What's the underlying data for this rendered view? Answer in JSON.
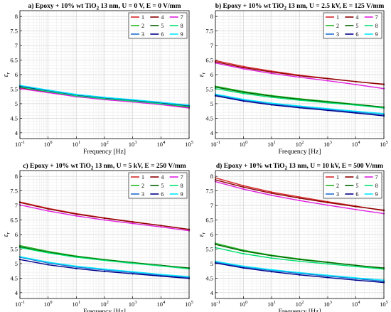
{
  "figure": {
    "xlabel": "Frequency [Hz]",
    "ylabel_symbol": "ε",
    "ylabel_sub": "r",
    "x_tick_labels": [
      {
        "base": "10",
        "exp": "-1"
      },
      {
        "base": "10",
        "exp": "0"
      },
      {
        "base": "10",
        "exp": "1"
      },
      {
        "base": "10",
        "exp": "2"
      },
      {
        "base": "10",
        "exp": "3"
      },
      {
        "base": "10",
        "exp": "4"
      },
      {
        "base": "10",
        "exp": "5"
      }
    ],
    "y_tick_labels": [
      "4",
      "4.5",
      "5",
      "5.5",
      "6",
      "6.5",
      "7",
      "7.5",
      "8"
    ],
    "legend_labels": [
      "1",
      "2",
      "3",
      "4",
      "5",
      "6",
      "7",
      "8",
      "9"
    ],
    "series_colors": [
      "#d62728",
      "#22b422",
      "#1f6fd0",
      "#8b0000",
      "#006400",
      "#00008b",
      "#e020e0",
      "#00e070",
      "#00e8ff"
    ]
  },
  "chart_data": [
    {
      "type": "line",
      "title_parts": {
        "pre": "a) Epoxy + 10% wt TiO",
        "sub": "2",
        "post": " 13 nm, U = 0 V, E = 0 V/mm"
      },
      "xlabel": "Frequency [Hz]",
      "ylabel": "ε r",
      "x_scale": "log",
      "xlim": [
        0.1,
        100000
      ],
      "ylim": [
        3.8,
        8.2
      ],
      "grid": true,
      "legend_position": "top-right",
      "x": [
        0.1,
        1,
        10,
        100,
        1000,
        10000,
        100000
      ],
      "series": [
        {
          "name": "1",
          "values": [
            5.55,
            5.4,
            5.25,
            5.15,
            5.07,
            4.98,
            4.88
          ]
        },
        {
          "name": "2",
          "values": [
            5.57,
            5.41,
            5.26,
            5.16,
            5.08,
            4.99,
            4.9
          ]
        },
        {
          "name": "3",
          "values": [
            5.6,
            5.44,
            5.29,
            5.19,
            5.11,
            5.02,
            4.93
          ]
        },
        {
          "name": "4",
          "values": [
            5.56,
            5.4,
            5.25,
            5.15,
            5.07,
            4.98,
            4.88
          ]
        },
        {
          "name": "5",
          "values": [
            5.58,
            5.42,
            5.27,
            5.17,
            5.09,
            5.0,
            4.91
          ]
        },
        {
          "name": "6",
          "values": [
            5.59,
            5.43,
            5.28,
            5.18,
            5.1,
            5.01,
            4.92
          ]
        },
        {
          "name": "7",
          "values": [
            5.52,
            5.38,
            5.24,
            5.14,
            5.06,
            4.97,
            4.85
          ]
        },
        {
          "name": "8",
          "values": [
            5.57,
            5.42,
            5.27,
            5.17,
            5.09,
            5.0,
            4.9
          ]
        },
        {
          "name": "9",
          "values": [
            5.63,
            5.47,
            5.32,
            5.22,
            5.14,
            5.05,
            4.95
          ]
        }
      ]
    },
    {
      "type": "line",
      "title_parts": {
        "pre": "b) Epoxy + 10% wt TiO",
        "sub": "2",
        "post": " 13 nm, U = 2.5 kV, E = 125 V/mm"
      },
      "xlabel": "Frequency [Hz]",
      "ylabel": "ε r",
      "x_scale": "log",
      "xlim": [
        0.1,
        100000
      ],
      "ylim": [
        3.8,
        8.2
      ],
      "grid": true,
      "legend_position": "top-right",
      "x": [
        0.1,
        1,
        10,
        100,
        1000,
        10000,
        100000
      ],
      "series": [
        {
          "name": "1",
          "values": [
            6.48,
            6.28,
            6.12,
            5.98,
            5.87,
            5.76,
            5.66
          ]
        },
        {
          "name": "2",
          "values": [
            5.6,
            5.42,
            5.28,
            5.17,
            5.08,
            4.98,
            4.88
          ]
        },
        {
          "name": "3",
          "values": [
            5.3,
            5.12,
            4.99,
            4.89,
            4.8,
            4.71,
            4.62
          ]
        },
        {
          "name": "4",
          "values": [
            6.44,
            6.24,
            6.09,
            5.96,
            5.86,
            5.76,
            5.67
          ]
        },
        {
          "name": "5",
          "values": [
            5.57,
            5.39,
            5.26,
            5.15,
            5.06,
            4.97,
            4.88
          ]
        },
        {
          "name": "6",
          "values": [
            5.27,
            5.09,
            4.96,
            4.86,
            4.77,
            4.68,
            4.58
          ]
        },
        {
          "name": "7",
          "values": [
            6.4,
            6.2,
            6.04,
            5.91,
            5.79,
            5.66,
            5.52
          ]
        },
        {
          "name": "8",
          "values": [
            5.52,
            5.35,
            5.22,
            5.12,
            5.03,
            4.95,
            4.85
          ]
        },
        {
          "name": "9",
          "values": [
            5.33,
            5.15,
            5.02,
            4.92,
            4.83,
            4.74,
            4.66
          ]
        }
      ]
    },
    {
      "type": "line",
      "title_parts": {
        "pre": "c) Epoxy + 10% wt TiO",
        "sub": "2",
        "post": " 13 nm, U = 5 kV, E = 250 V/mm"
      },
      "xlabel": "Frequency [Hz]",
      "ylabel": "ε r",
      "x_scale": "log",
      "xlim": [
        0.1,
        100000
      ],
      "ylim": [
        3.8,
        8.2
      ],
      "grid": true,
      "legend_position": "top-right",
      "x": [
        0.1,
        1,
        10,
        100,
        1000,
        10000,
        100000
      ],
      "series": [
        {
          "name": "1",
          "values": [
            7.12,
            6.9,
            6.72,
            6.57,
            6.44,
            6.31,
            6.17
          ]
        },
        {
          "name": "2",
          "values": [
            5.62,
            5.42,
            5.26,
            5.14,
            5.04,
            4.94,
            4.84
          ]
        },
        {
          "name": "3",
          "values": [
            5.22,
            5.02,
            4.88,
            4.78,
            4.69,
            4.6,
            4.52
          ]
        },
        {
          "name": "4",
          "values": [
            7.1,
            6.88,
            6.7,
            6.56,
            6.43,
            6.31,
            6.18
          ]
        },
        {
          "name": "5",
          "values": [
            5.58,
            5.39,
            5.24,
            5.13,
            5.03,
            4.94,
            4.85
          ]
        },
        {
          "name": "6",
          "values": [
            5.14,
            4.96,
            4.83,
            4.73,
            4.65,
            4.57,
            4.49
          ]
        },
        {
          "name": "7",
          "values": [
            7.02,
            6.81,
            6.64,
            6.5,
            6.38,
            6.26,
            6.13
          ]
        },
        {
          "name": "8",
          "values": [
            5.55,
            5.37,
            5.22,
            5.11,
            5.01,
            4.92,
            4.82
          ]
        },
        {
          "name": "9",
          "values": [
            5.24,
            5.05,
            4.91,
            4.81,
            4.72,
            4.63,
            4.55
          ]
        }
      ]
    },
    {
      "type": "line",
      "title_parts": {
        "pre": "d) Epoxy + 10% wt TiO",
        "sub": "2",
        "post": " 13 nm, U = 10 kV, E = 500 V/mm"
      },
      "xlabel": "Frequency [Hz]",
      "ylabel": "ε r",
      "x_scale": "log",
      "xlim": [
        0.1,
        100000
      ],
      "ylim": [
        3.8,
        8.2
      ],
      "grid": true,
      "legend_position": "top-right",
      "x": [
        0.1,
        1,
        10,
        100,
        1000,
        10000,
        100000
      ],
      "series": [
        {
          "name": "1",
          "values": [
            7.95,
            7.68,
            7.46,
            7.29,
            7.13,
            6.98,
            6.82
          ]
        },
        {
          "name": "2",
          "values": [
            5.7,
            5.46,
            5.29,
            5.16,
            5.05,
            4.94,
            4.83
          ]
        },
        {
          "name": "3",
          "values": [
            5.05,
            4.88,
            4.76,
            4.66,
            4.57,
            4.48,
            4.39
          ]
        },
        {
          "name": "4",
          "values": [
            7.88,
            7.63,
            7.42,
            7.25,
            7.1,
            6.96,
            6.84
          ]
        },
        {
          "name": "5",
          "values": [
            5.66,
            5.43,
            5.27,
            5.14,
            5.04,
            4.94,
            4.85
          ]
        },
        {
          "name": "6",
          "values": [
            5.02,
            4.85,
            4.72,
            4.61,
            4.52,
            4.43,
            4.35
          ]
        },
        {
          "name": "7",
          "values": [
            7.82,
            7.56,
            7.35,
            7.17,
            7.01,
            6.86,
            6.72
          ]
        },
        {
          "name": "8",
          "values": [
            5.55,
            5.34,
            5.19,
            5.08,
            4.99,
            4.9,
            4.81
          ]
        },
        {
          "name": "9",
          "values": [
            5.08,
            4.91,
            4.79,
            4.69,
            4.6,
            4.51,
            4.43
          ]
        }
      ]
    }
  ]
}
